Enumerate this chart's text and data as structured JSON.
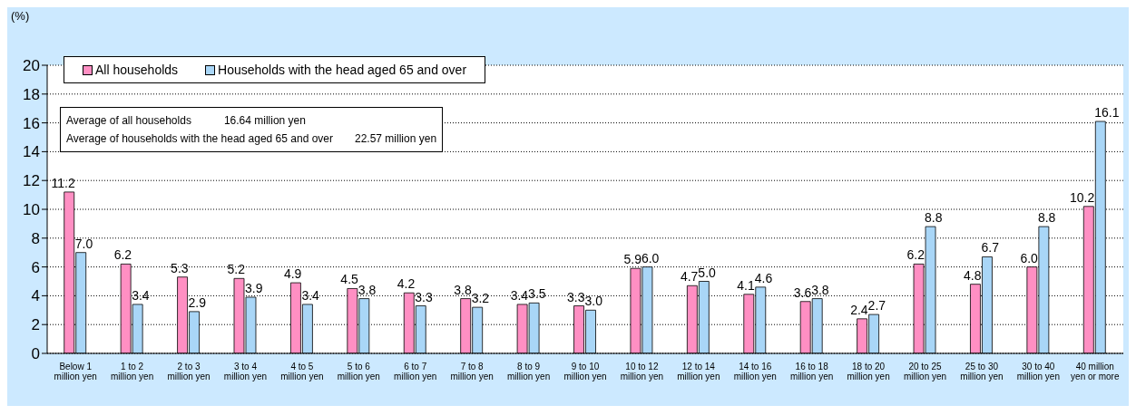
{
  "chart_data": {
    "type": "bar",
    "ylabel": "(%)",
    "categories": [
      "Below 1 million yen",
      "1 to 2 million yen",
      "2 to 3 million yen",
      "3 to 4 million yen",
      "4 to 5 million yen",
      "5 to 6 million yen",
      "6 to 7 million yen",
      "7 to 8 million yen",
      "8 to 9 million yen",
      "9 to 10 million yen",
      "10 to 12 million yen",
      "12 to 14 million yen",
      "14 to 16 million yen",
      "16 to 18 million yen",
      "18 to 20 million yen",
      "20 to 25 million yen",
      "25 to 30 million yen",
      "30 to 40 million yen",
      "40 million yen or more"
    ],
    "series": [
      {
        "name": "All households",
        "color": "#ff8fc3",
        "values": [
          11.2,
          6.2,
          5.3,
          5.2,
          4.9,
          4.5,
          4.2,
          3.8,
          3.4,
          3.3,
          5.9,
          4.7,
          4.1,
          3.6,
          2.4,
          6.2,
          4.8,
          6.0,
          10.2
        ],
        "value_labels": [
          "11.2",
          "6.2",
          "5.3",
          "5.2",
          "4.9",
          "4.5",
          "4.2",
          "3.8",
          "3.4",
          "3.3",
          "5.9",
          "4.7",
          "4.1",
          "3.6",
          "2.4",
          "6.2",
          "4.8",
          "6.0",
          "10.2"
        ]
      },
      {
        "name": "Households with the head aged 65 and over",
        "color": "#a9d6f7",
        "values": [
          7.0,
          3.4,
          2.9,
          3.9,
          3.4,
          3.8,
          3.3,
          3.2,
          3.5,
          3.0,
          6.0,
          5.0,
          4.6,
          3.8,
          2.7,
          8.8,
          6.7,
          8.8,
          16.1
        ],
        "value_labels": [
          "7.0",
          "3.4",
          "2.9",
          "3.9",
          "3.4",
          "3.8",
          "3.3",
          "3.2",
          "3.5",
          "3.0",
          "6.0",
          "5.0",
          "4.6",
          "3.8",
          "2.7",
          "8.8",
          "6.7",
          "8.8",
          "16.1"
        ]
      }
    ],
    "ylim": [
      0,
      20
    ],
    "yticks": [
      0,
      2,
      4,
      6,
      8,
      10,
      12,
      14,
      16,
      18,
      20
    ],
    "grid": "y",
    "legend": "top left",
    "annotations": [
      "Average of all households   16.64 million yen",
      "Average of households with the head aged 65 and over  22.57 million yen"
    ]
  }
}
